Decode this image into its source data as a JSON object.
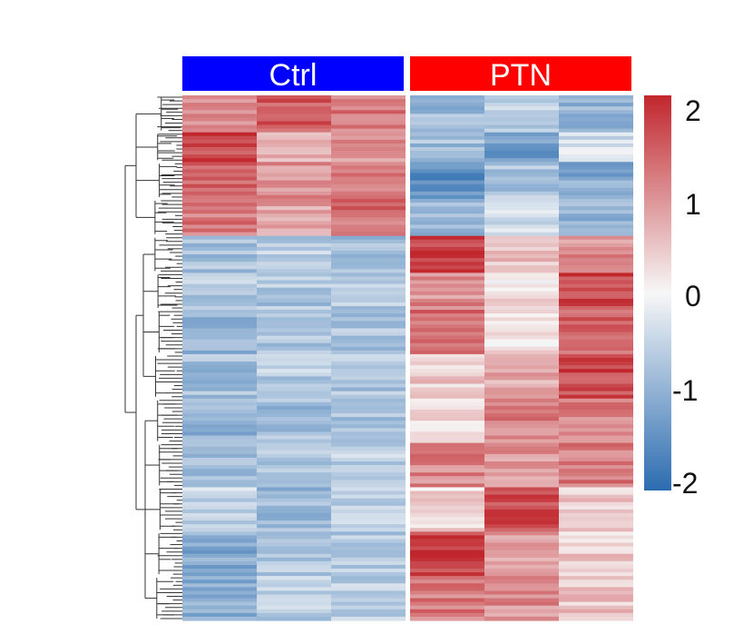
{
  "chart_data": {
    "type": "heatmap",
    "groups": [
      {
        "name": "Ctrl",
        "color": "#0000ff",
        "columns": 3
      },
      {
        "name": "PTN",
        "color": "#ff0000",
        "columns": 3
      }
    ],
    "colorscale": {
      "min": -2,
      "max": 2,
      "ticks": [
        "2",
        "1",
        "0",
        "-1",
        "-2"
      ],
      "tick_values": [
        2,
        1,
        0,
        -1,
        -2
      ],
      "low_color": "#2b6cb0",
      "mid_color": "#f7f7f7",
      "high_color": "#c0272d"
    },
    "row_blocks": [
      {
        "rows": 10,
        "values": [
          1.1,
          1.5,
          1.2,
          -0.9,
          -0.6,
          -1.0
        ]
      },
      {
        "rows": 8,
        "values": [
          1.7,
          0.6,
          1.0,
          -0.8,
          -1.3,
          -0.4
        ]
      },
      {
        "rows": 10,
        "values": [
          1.5,
          1.0,
          1.2,
          -1.5,
          -0.7,
          -1.1
        ]
      },
      {
        "rows": 10,
        "values": [
          1.2,
          0.8,
          1.3,
          -1.0,
          -0.4,
          -0.9
        ]
      },
      {
        "rows": 10,
        "values": [
          -0.8,
          -0.6,
          -0.8,
          1.8,
          0.5,
          1.0
        ]
      },
      {
        "rows": 10,
        "values": [
          -0.6,
          -0.7,
          -0.6,
          1.0,
          0.2,
          1.7
        ]
      },
      {
        "rows": 12,
        "values": [
          -0.9,
          -0.7,
          -0.7,
          1.3,
          0.3,
          1.4
        ]
      },
      {
        "rows": 12,
        "values": [
          -0.8,
          -0.6,
          -0.7,
          0.4,
          0.8,
          1.7
        ]
      },
      {
        "rows": 12,
        "values": [
          -1.0,
          -0.8,
          -0.7,
          0.3,
          1.1,
          1.1
        ]
      },
      {
        "rows": 12,
        "values": [
          -0.8,
          -0.7,
          -0.6,
          1.1,
          0.9,
          1.2
        ]
      },
      {
        "rows": 12,
        "values": [
          -0.5,
          -0.9,
          -0.6,
          0.3,
          1.7,
          0.4
        ]
      },
      {
        "rows": 12,
        "values": [
          -1.1,
          -0.7,
          -0.7,
          1.8,
          0.9,
          0.4
        ]
      },
      {
        "rows": 12,
        "values": [
          -1.0,
          -0.6,
          -0.6,
          1.2,
          1.0,
          0.5
        ]
      }
    ]
  }
}
